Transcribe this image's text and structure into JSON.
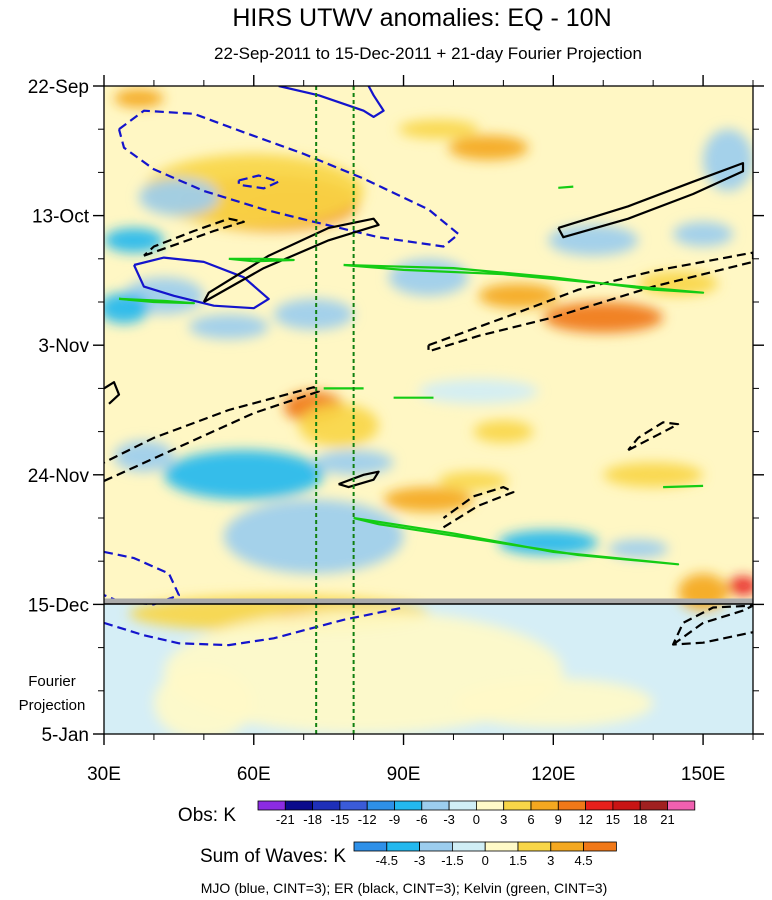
{
  "chart_data": {
    "type": "heatmap",
    "title": "HIRS UTWV anomalies: EQ - 10N",
    "subtitle": "22-Sep-2011 to 15-Dec-2011 + 21-day Fourier Projection",
    "x_range": [
      30,
      160
    ],
    "x_ticks": [
      {
        "value": 30,
        "label": "30E"
      },
      {
        "value": 60,
        "label": "60E"
      },
      {
        "value": 90,
        "label": "90E"
      },
      {
        "value": 120,
        "label": "120E"
      },
      {
        "value": 150,
        "label": "150E"
      }
    ],
    "y_range_days": [
      0,
      105
    ],
    "y_ticks": [
      {
        "day": 0,
        "label": "22-Sep"
      },
      {
        "day": 21,
        "label": "13-Oct"
      },
      {
        "day": 42,
        "label": "3-Nov"
      },
      {
        "day": 63,
        "label": "24-Nov"
      },
      {
        "day": 84,
        "label": "15-Dec"
      },
      {
        "day": 105,
        "label": "5-Jan"
      }
    ],
    "projection_start_day": 84,
    "projection_label_line1": "Fourier",
    "projection_label_line2": "Projection",
    "vertical_reference_lines_lon": [
      72.5,
      80
    ],
    "obs_legend": {
      "label": "Obs: K",
      "colors": [
        "#8B2BE2",
        "#0A0A8C",
        "#1E2FB8",
        "#3A5BD8",
        "#2E90E8",
        "#23B8EE",
        "#9CCDEE",
        "#D0EEF6",
        "#FFFAC8",
        "#F8D648",
        "#F4A820",
        "#F07818",
        "#E8201C",
        "#C81414",
        "#A02020",
        "#F060B0"
      ],
      "labels": [
        "-21",
        "-18",
        "-15",
        "-12",
        "-9",
        "-6",
        "-3",
        "0",
        "3",
        "6",
        "9",
        "12",
        "15",
        "18",
        "21"
      ]
    },
    "waves_legend": {
      "label": "Sum of Waves: K",
      "colors": [
        "#2E90E8",
        "#23B8EE",
        "#9CCDEE",
        "#D0EEF6",
        "#FFFAC8",
        "#F8D648",
        "#F4A820",
        "#F07818"
      ],
      "labels": [
        "-4.5",
        "-3",
        "-1.5",
        "0",
        "1.5",
        "3",
        "4.5"
      ]
    },
    "contour_note": "MJO (blue, CINT=3); ER (black, CINT=3); Kelvin (green, CINT=3)",
    "anomaly_features": [
      {
        "lon": 68,
        "day": 19.5,
        "rx": 10,
        "ry": 2.2,
        "value": 15
      },
      {
        "lon": 63,
        "day": 19,
        "rx": 18,
        "ry": 4.5,
        "value": 9
      },
      {
        "lon": 60,
        "day": 17,
        "rx": 22,
        "ry": 6,
        "value": 4
      },
      {
        "lon": 45,
        "day": 18,
        "rx": 8,
        "ry": 3,
        "value": -6
      },
      {
        "lon": 36,
        "day": 25,
        "rx": 6,
        "ry": 2,
        "value": -7
      },
      {
        "lon": 42,
        "day": 34,
        "rx": 8,
        "ry": 3,
        "value": -5
      },
      {
        "lon": 34,
        "day": 36,
        "rx": 5,
        "ry": 2.5,
        "value": -8
      },
      {
        "lon": 55,
        "day": 39,
        "rx": 8,
        "ry": 2,
        "value": -5
      },
      {
        "lon": 72,
        "day": 37,
        "rx": 8,
        "ry": 2.5,
        "value": -4
      },
      {
        "lon": 95,
        "day": 31,
        "rx": 8,
        "ry": 3,
        "value": -4
      },
      {
        "lon": 128,
        "day": 25,
        "rx": 9,
        "ry": 2.5,
        "value": -4
      },
      {
        "lon": 150,
        "day": 24,
        "rx": 6,
        "ry": 2,
        "value": -5
      },
      {
        "lon": 155,
        "day": 12,
        "rx": 5,
        "ry": 5,
        "value": -4
      },
      {
        "lon": 97,
        "day": 7,
        "rx": 8,
        "ry": 1.5,
        "value": 5
      },
      {
        "lon": 107,
        "day": 10,
        "rx": 8,
        "ry": 2,
        "value": 6
      },
      {
        "lon": 37,
        "day": 2,
        "rx": 5,
        "ry": 1.5,
        "value": 6
      },
      {
        "lon": 130,
        "day": 37.5,
        "rx": 12,
        "ry": 2.5,
        "value": 10
      },
      {
        "lon": 113,
        "day": 34,
        "rx": 8,
        "ry": 2,
        "value": 6
      },
      {
        "lon": 145,
        "day": 32,
        "rx": 8,
        "ry": 2,
        "value": 5
      },
      {
        "lon": 72,
        "day": 52,
        "rx": 6,
        "ry": 2.5,
        "value": 9
      },
      {
        "lon": 77,
        "day": 55,
        "rx": 8,
        "ry": 3.5,
        "value": 5
      },
      {
        "lon": 58,
        "day": 63,
        "rx": 16,
        "ry": 4,
        "value": -8
      },
      {
        "lon": 38,
        "day": 60,
        "rx": 6,
        "ry": 2.5,
        "value": -6
      },
      {
        "lon": 80,
        "day": 61,
        "rx": 8,
        "ry": 2,
        "value": -5
      },
      {
        "lon": 95,
        "day": 67,
        "rx": 9,
        "ry": 2,
        "value": 7
      },
      {
        "lon": 104,
        "day": 64,
        "rx": 7,
        "ry": 1.5,
        "value": 5
      },
      {
        "lon": 119,
        "day": 74,
        "rx": 10,
        "ry": 2,
        "value": -7
      },
      {
        "lon": 137,
        "day": 75,
        "rx": 6,
        "ry": 1.5,
        "value": -5
      },
      {
        "lon": 140,
        "day": 63,
        "rx": 10,
        "ry": 2,
        "value": 4
      },
      {
        "lon": 105,
        "day": 49.5,
        "rx": 12,
        "ry": 2,
        "value": -3
      },
      {
        "lon": 110,
        "day": 56,
        "rx": 6,
        "ry": 1.8,
        "value": 5
      },
      {
        "lon": 72,
        "day": 73,
        "rx": 18,
        "ry": 6,
        "value": -4
      },
      {
        "lon": 65,
        "day": 85.5,
        "rx": 30,
        "ry": 3,
        "value": 4
      },
      {
        "lon": 70,
        "day": 86.5,
        "rx": 6,
        "ry": 1.5,
        "value": 8
      },
      {
        "lon": 150,
        "day": 82,
        "rx": 5,
        "ry": 3,
        "value": 6
      },
      {
        "lon": 158,
        "day": 81,
        "rx": 3,
        "ry": 1.5,
        "value": 13
      },
      {
        "lon": 82,
        "day": 95,
        "rx": 40,
        "ry": 10,
        "value": 1.6
      },
      {
        "lon": 50,
        "day": 100,
        "rx": 10,
        "ry": 6,
        "value": 1.6
      },
      {
        "lon": 120,
        "day": 100,
        "rx": 20,
        "ry": 4,
        "value": 1.6
      }
    ],
    "contours": [
      {
        "wave": "MJO",
        "color": "#1414CC",
        "dash": true,
        "points": [
          [
            33,
            7
          ],
          [
            38,
            4
          ],
          [
            48,
            4.5
          ],
          [
            58,
            7.5
          ],
          [
            70,
            11
          ],
          [
            82,
            15
          ],
          [
            95,
            20
          ],
          [
            101,
            24
          ],
          [
            98,
            26
          ],
          [
            85,
            24.5
          ],
          [
            72,
            22
          ],
          [
            62,
            20
          ],
          [
            50,
            17
          ],
          [
            40,
            13.5
          ],
          [
            34,
            10
          ],
          [
            33,
            7
          ]
        ]
      },
      {
        "wave": "MJO",
        "color": "#1414CC",
        "dash": true,
        "points": [
          [
            57,
            15.3
          ],
          [
            61,
            14.5
          ],
          [
            65,
            15.5
          ],
          [
            62,
            16.6
          ],
          [
            57,
            16
          ],
          [
            57,
            15.3
          ]
        ]
      },
      {
        "wave": "MJO",
        "color": "#1414CC",
        "dash": false,
        "points": [
          [
            65,
            0
          ],
          [
            73,
            1.5
          ],
          [
            82,
            4
          ],
          [
            84,
            5
          ],
          [
            86,
            4
          ],
          [
            84,
            1.5
          ],
          [
            83,
            0
          ]
        ]
      },
      {
        "wave": "MJO",
        "color": "#1414CC",
        "dash": false,
        "points": [
          [
            36,
            29
          ],
          [
            42,
            27.8
          ],
          [
            50,
            28.5
          ],
          [
            58,
            31
          ],
          [
            63,
            34.5
          ],
          [
            60,
            36
          ],
          [
            52,
            35.6
          ],
          [
            44,
            34
          ],
          [
            38,
            32.5
          ],
          [
            36,
            29
          ]
        ]
      },
      {
        "wave": "MJO",
        "color": "#1414CC",
        "dash": true,
        "points": [
          [
            30,
            75.5
          ],
          [
            36,
            76.5
          ],
          [
            43,
            79
          ],
          [
            45,
            82.5
          ],
          [
            40,
            84
          ],
          [
            33,
            83.5
          ],
          [
            30,
            82.5
          ]
        ]
      },
      {
        "wave": "MJO",
        "color": "#1414CC",
        "dash": true,
        "points": [
          [
            30,
            87
          ],
          [
            38,
            89
          ],
          [
            45,
            90.3
          ],
          [
            55,
            90.6
          ],
          [
            64,
            89.5
          ],
          [
            78,
            86.5
          ],
          [
            90,
            84.5
          ]
        ]
      },
      {
        "wave": "ER",
        "color": "#000000",
        "dash": false,
        "points": [
          [
            50,
            35
          ],
          [
            62,
            29.5
          ],
          [
            75,
            25
          ],
          [
            85,
            22.5
          ],
          [
            84,
            21.5
          ],
          [
            75,
            23
          ],
          [
            63,
            27.5
          ],
          [
            51,
            33.5
          ],
          [
            50,
            35
          ]
        ]
      },
      {
        "wave": "ER",
        "color": "#000000",
        "dash": false,
        "points": [
          [
            121,
            23
          ],
          [
            135,
            19.5
          ],
          [
            148,
            15.5
          ],
          [
            158,
            12.5
          ],
          [
            158,
            13.8
          ],
          [
            148,
            17.5
          ],
          [
            135,
            21.5
          ],
          [
            122,
            24.5
          ],
          [
            121,
            23
          ]
        ]
      },
      {
        "wave": "ER",
        "color": "#000000",
        "dash": false,
        "points": [
          [
            77,
            64.5
          ],
          [
            82,
            63
          ],
          [
            85,
            62.5
          ],
          [
            84,
            63.8
          ],
          [
            79,
            65
          ],
          [
            77,
            64.5
          ]
        ]
      },
      {
        "wave": "ER",
        "color": "#000000",
        "dash": false,
        "points": [
          [
            30,
            49
          ],
          [
            32,
            48
          ],
          [
            33,
            50
          ],
          [
            31,
            51.5
          ]
        ]
      },
      {
        "wave": "ER",
        "color": "#000000",
        "dash": true,
        "points": [
          [
            30,
            64
          ],
          [
            45,
            58.5
          ],
          [
            60,
            53
          ],
          [
            73,
            49.5
          ],
          [
            72,
            48.8
          ],
          [
            55,
            52.5
          ],
          [
            40,
            57
          ],
          [
            30,
            61
          ]
        ]
      },
      {
        "wave": "ER",
        "color": "#000000",
        "dash": true,
        "points": [
          [
            95,
            42
          ],
          [
            112,
            37
          ],
          [
            125,
            33
          ],
          [
            140,
            30
          ],
          [
            160,
            27
          ],
          [
            160,
            28.5
          ],
          [
            140,
            32.5
          ],
          [
            120,
            37.5
          ],
          [
            105,
            40.5
          ],
          [
            95,
            43
          ],
          [
            95,
            42
          ]
        ]
      },
      {
        "wave": "ER",
        "color": "#000000",
        "dash": true,
        "points": [
          [
            38,
            27.5
          ],
          [
            45,
            25.5
          ],
          [
            52,
            23.5
          ],
          [
            58,
            22
          ],
          [
            55,
            21.5
          ],
          [
            48,
            23.5
          ],
          [
            40,
            26
          ],
          [
            38,
            27.5
          ]
        ]
      },
      {
        "wave": "ER",
        "color": "#000000",
        "dash": true,
        "points": [
          [
            98,
            71.5
          ],
          [
            105,
            68
          ],
          [
            112,
            65.8
          ],
          [
            110,
            65
          ],
          [
            104,
            66.5
          ],
          [
            98,
            70
          ]
        ]
      },
      {
        "wave": "ER",
        "color": "#000000",
        "dash": true,
        "points": [
          [
            135,
            59
          ],
          [
            141,
            56.5
          ],
          [
            145,
            54.8
          ],
          [
            142,
            54.5
          ],
          [
            137,
            57
          ],
          [
            135,
            59
          ]
        ]
      },
      {
        "wave": "ER",
        "color": "#000000",
        "dash": true,
        "points": [
          [
            144,
            90.5
          ],
          [
            150,
            87
          ],
          [
            158,
            85
          ],
          [
            160,
            84.2
          ],
          [
            152,
            84.5
          ],
          [
            146,
            87
          ],
          [
            144,
            90.5
          ],
          [
            150,
            90.2
          ],
          [
            160,
            88.5
          ]
        ]
      },
      {
        "wave": "Kelvin",
        "color": "#14CC14",
        "dash": false,
        "points": [
          [
            78,
            29
          ],
          [
            100,
            29.5
          ],
          [
            120,
            31
          ],
          [
            140,
            33
          ],
          [
            150,
            33.5
          ],
          [
            130,
            32
          ],
          [
            110,
            30.5
          ],
          [
            90,
            29.8
          ],
          [
            78,
            29
          ]
        ]
      },
      {
        "wave": "Kelvin",
        "color": "#14CC14",
        "dash": false,
        "points": [
          [
            33,
            34.5
          ],
          [
            40,
            35
          ],
          [
            48,
            35.2
          ],
          [
            42,
            34.8
          ],
          [
            33,
            34.5
          ]
        ]
      },
      {
        "wave": "Kelvin",
        "color": "#14CC14",
        "dash": false,
        "points": [
          [
            80,
            70
          ],
          [
            100,
            72.5
          ],
          [
            120,
            75.5
          ],
          [
            145,
            77.5
          ],
          [
            125,
            76
          ],
          [
            105,
            73.5
          ],
          [
            85,
            71
          ],
          [
            80,
            70
          ]
        ]
      },
      {
        "wave": "Kelvin",
        "color": "#14CC14",
        "dash": false,
        "points": [
          [
            55,
            28
          ],
          [
            62,
            28
          ],
          [
            68,
            28.2
          ],
          [
            60,
            28.4
          ],
          [
            55,
            28
          ]
        ]
      },
      {
        "wave": "Kelvin",
        "color": "#14CC14",
        "dash": false,
        "points": [
          [
            74,
            49
          ],
          [
            82,
            49
          ]
        ]
      },
      {
        "wave": "Kelvin",
        "color": "#14CC14",
        "dash": false,
        "points": [
          [
            88,
            50.5
          ],
          [
            96,
            50.5
          ]
        ]
      },
      {
        "wave": "Kelvin",
        "color": "#14CC14",
        "dash": false,
        "points": [
          [
            142,
            65
          ],
          [
            150,
            64.8
          ]
        ]
      },
      {
        "wave": "Kelvin",
        "color": "#14CC14",
        "dash": false,
        "points": [
          [
            121,
            16.5
          ],
          [
            124,
            16.3
          ]
        ]
      }
    ]
  }
}
